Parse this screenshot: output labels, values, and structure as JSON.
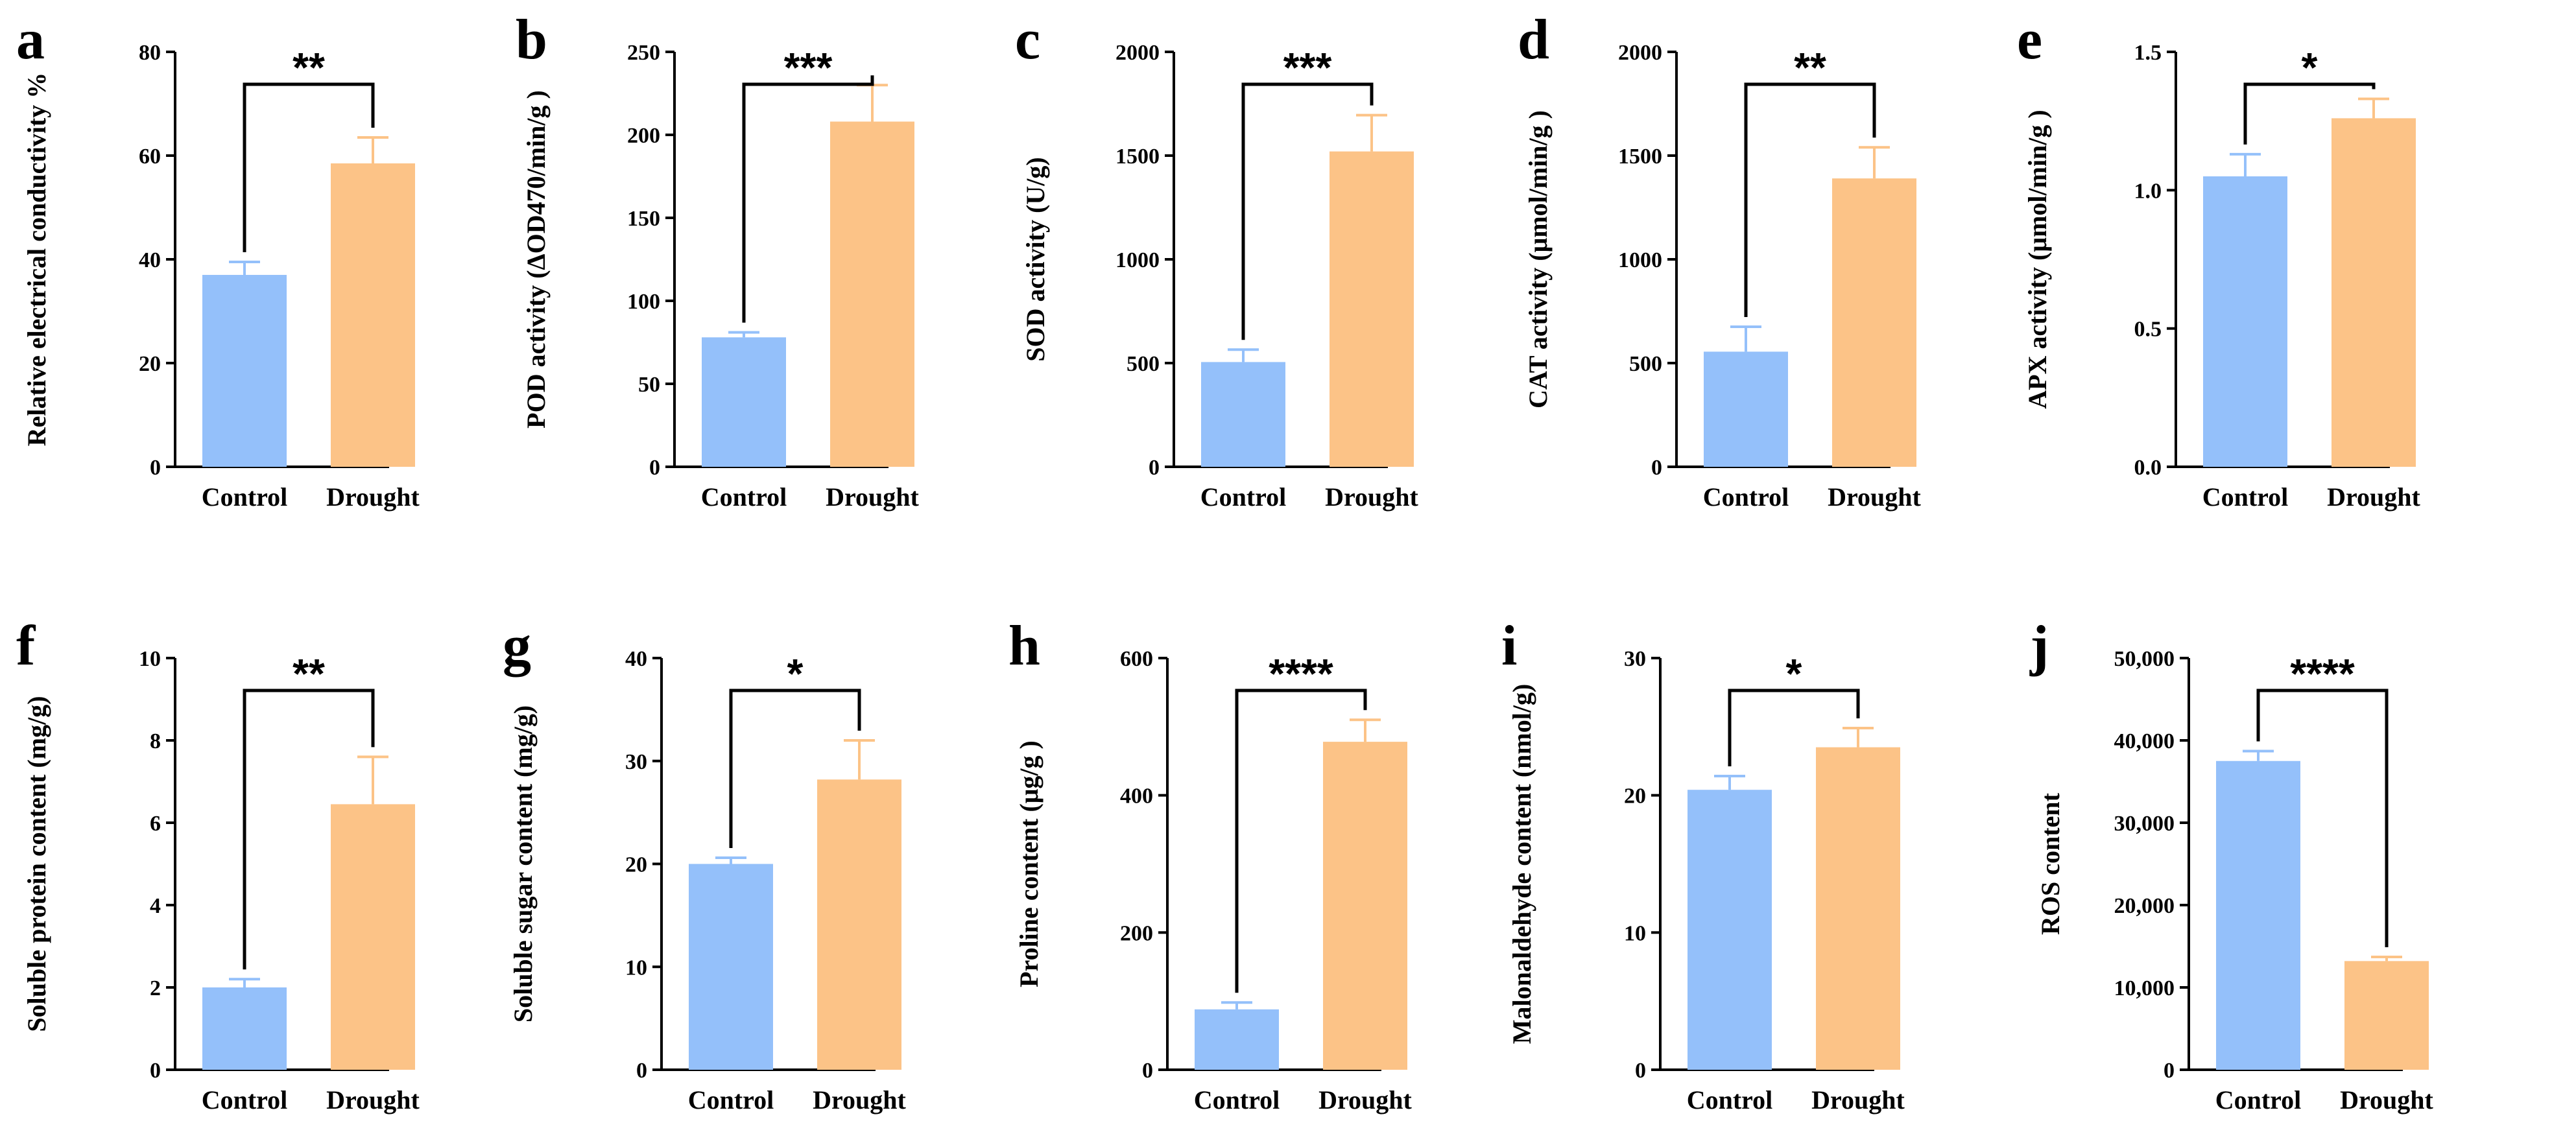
{
  "figure": {
    "colors": {
      "control": "#94C0FA",
      "drought": "#FCC387"
    },
    "panels": [
      {
        "id": "a",
        "type": "bar",
        "letter": "a",
        "ylabel": "Relative electrical conductivity %",
        "categories": [
          "Control",
          "Drought"
        ],
        "values": [
          37,
          58.5
        ],
        "errors": [
          2.5,
          5
        ],
        "ylim": [
          0,
          80
        ],
        "ticks": [
          "0",
          "20",
          "40",
          "60",
          "80"
        ],
        "significance": "**"
      },
      {
        "id": "b",
        "type": "bar",
        "letter": "b",
        "ylabel": "POD activity (ΔOD470/min/g )",
        "categories": [
          "Control",
          "Drought"
        ],
        "values": [
          78,
          208
        ],
        "errors": [
          3,
          22
        ],
        "ylim": [
          0,
          250
        ],
        "ticks": [
          "0",
          "50",
          "100",
          "150",
          "200",
          "250"
        ],
        "significance": "***"
      },
      {
        "id": "c",
        "type": "bar",
        "letter": "c",
        "ylabel": "SOD activity (U/g)",
        "categories": [
          "Control",
          "Drought"
        ],
        "values": [
          505,
          1520
        ],
        "errors": [
          60,
          175
        ],
        "ylim": [
          0,
          2000
        ],
        "ticks": [
          "0",
          "500",
          "1000",
          "1500",
          "2000"
        ],
        "significance": "***"
      },
      {
        "id": "d",
        "type": "bar",
        "letter": "d",
        "ylabel": "CAT activity (μmol/min/g )",
        "categories": [
          "Control",
          "Drought"
        ],
        "values": [
          555,
          1390
        ],
        "errors": [
          120,
          150
        ],
        "ylim": [
          0,
          2000
        ],
        "ticks": [
          "0",
          "500",
          "1000",
          "1500",
          "2000"
        ],
        "significance": "**"
      },
      {
        "id": "e",
        "type": "bar",
        "letter": "e",
        "ylabel": "APX activity (μmol/min/g )",
        "categories": [
          "Control",
          "Drought"
        ],
        "values": [
          1.05,
          1.26
        ],
        "errors": [
          0.08,
          0.07
        ],
        "ylim": [
          0,
          1.5
        ],
        "ticks": [
          "0.0",
          "0.5",
          "1.0",
          "1.5"
        ],
        "significance": "*"
      },
      {
        "id": "f",
        "type": "bar",
        "letter": "f",
        "ylabel": "Soluble protein content (mg/g)",
        "categories": [
          "Control",
          "Drought"
        ],
        "values": [
          2,
          6.45
        ],
        "errors": [
          0.2,
          1.15
        ],
        "ylim": [
          0,
          10
        ],
        "ticks": [
          "0",
          "2",
          "4",
          "6",
          "8",
          "10"
        ],
        "significance": "**"
      },
      {
        "id": "g",
        "type": "bar",
        "letter": "g",
        "ylabel": "Soluble sugar content (mg/g)",
        "categories": [
          "Control",
          "Drought"
        ],
        "values": [
          20,
          28.2
        ],
        "errors": [
          0.6,
          3.8
        ],
        "ylim": [
          0,
          40
        ],
        "ticks": [
          "0",
          "10",
          "20",
          "30",
          "40"
        ],
        "significance": "*"
      },
      {
        "id": "h",
        "type": "bar",
        "letter": "h",
        "ylabel": "Proline content (μg/g )",
        "categories": [
          "Control",
          "Drought"
        ],
        "values": [
          88,
          478
        ],
        "errors": [
          10,
          32
        ],
        "ylim": [
          0,
          600
        ],
        "ticks": [
          "0",
          "200",
          "400",
          "600"
        ],
        "significance": "****"
      },
      {
        "id": "i",
        "type": "bar",
        "letter": "i",
        "ylabel": "Malonaldehyde content (nmol/g)",
        "categories": [
          "Control",
          "Drought"
        ],
        "values": [
          20.4,
          23.5
        ],
        "errors": [
          1,
          1.4
        ],
        "ylim": [
          0,
          30
        ],
        "ticks": [
          "0",
          "10",
          "20",
          "30"
        ],
        "significance": "*"
      },
      {
        "id": "j",
        "type": "bar",
        "letter": "j",
        "ylabel": "ROS content",
        "categories": [
          "Control",
          "Drought"
        ],
        "values": [
          37500,
          13200
        ],
        "errors": [
          1200,
          500
        ],
        "ylim": [
          0,
          50000
        ],
        "ticks": [
          "0",
          "10,000",
          "20,000",
          "30,000",
          "40,000",
          "50,000"
        ],
        "significance": "****"
      }
    ]
  }
}
